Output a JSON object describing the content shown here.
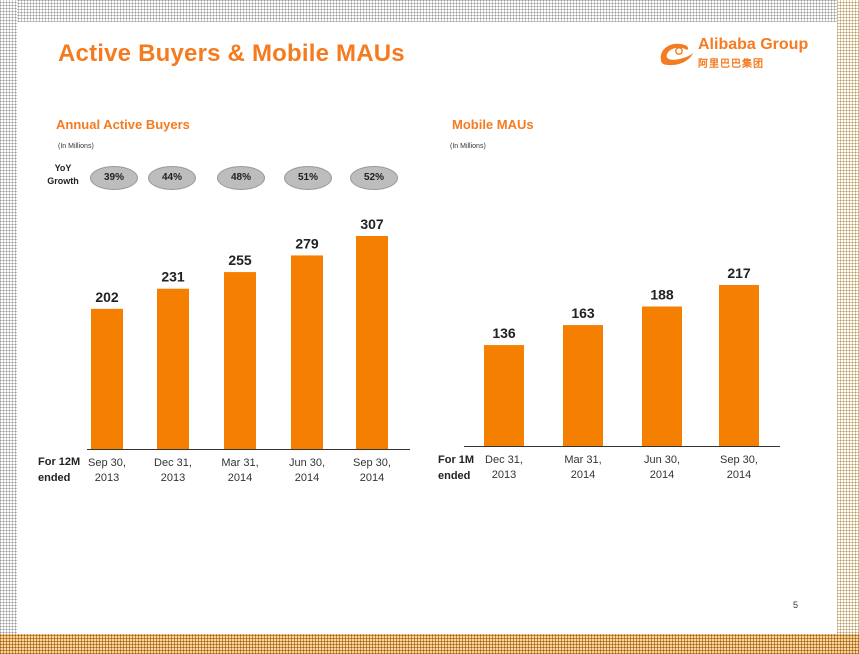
{
  "slide": {
    "title": "Active Buyers & Mobile MAUs",
    "page_number": "5",
    "logo": {
      "name": "Alibaba Group",
      "chinese": "阿里巴巴集团"
    }
  },
  "colors": {
    "accent": "#f47b20",
    "bar": "#f57f00",
    "pill": "#bdbdbd"
  },
  "yoy": {
    "label_line1": "YoY",
    "label_line2": "Growth",
    "values": [
      "39%",
      "44%",
      "48%",
      "51%",
      "52%"
    ]
  },
  "footers": {
    "left_line1": "For 12M",
    "left_line2": "ended",
    "right_line1": "For 1M",
    "right_line2": "ended"
  },
  "chart_data": [
    {
      "type": "bar",
      "title": "Annual Active Buyers",
      "subtitle": "(In Millions)",
      "categories": [
        [
          "Sep 30,",
          "2013"
        ],
        [
          "Dec 31,",
          "2013"
        ],
        [
          "Mar 31,",
          "2014"
        ],
        [
          "Jun 30,",
          "2014"
        ],
        [
          "Sep 30,",
          "2014"
        ]
      ],
      "values": [
        202,
        231,
        255,
        279,
        307
      ],
      "ylim": [
        0,
        310
      ]
    },
    {
      "type": "bar",
      "title": "Mobile MAUs",
      "subtitle": "(In Millions)",
      "categories": [
        [
          "Dec 31,",
          "2013"
        ],
        [
          "Mar 31,",
          "2014"
        ],
        [
          "Jun 30,",
          "2014"
        ],
        [
          "Sep 30,",
          "2014"
        ]
      ],
      "values": [
        136,
        163,
        188,
        217
      ],
      "ylim": [
        0,
        220
      ]
    }
  ]
}
